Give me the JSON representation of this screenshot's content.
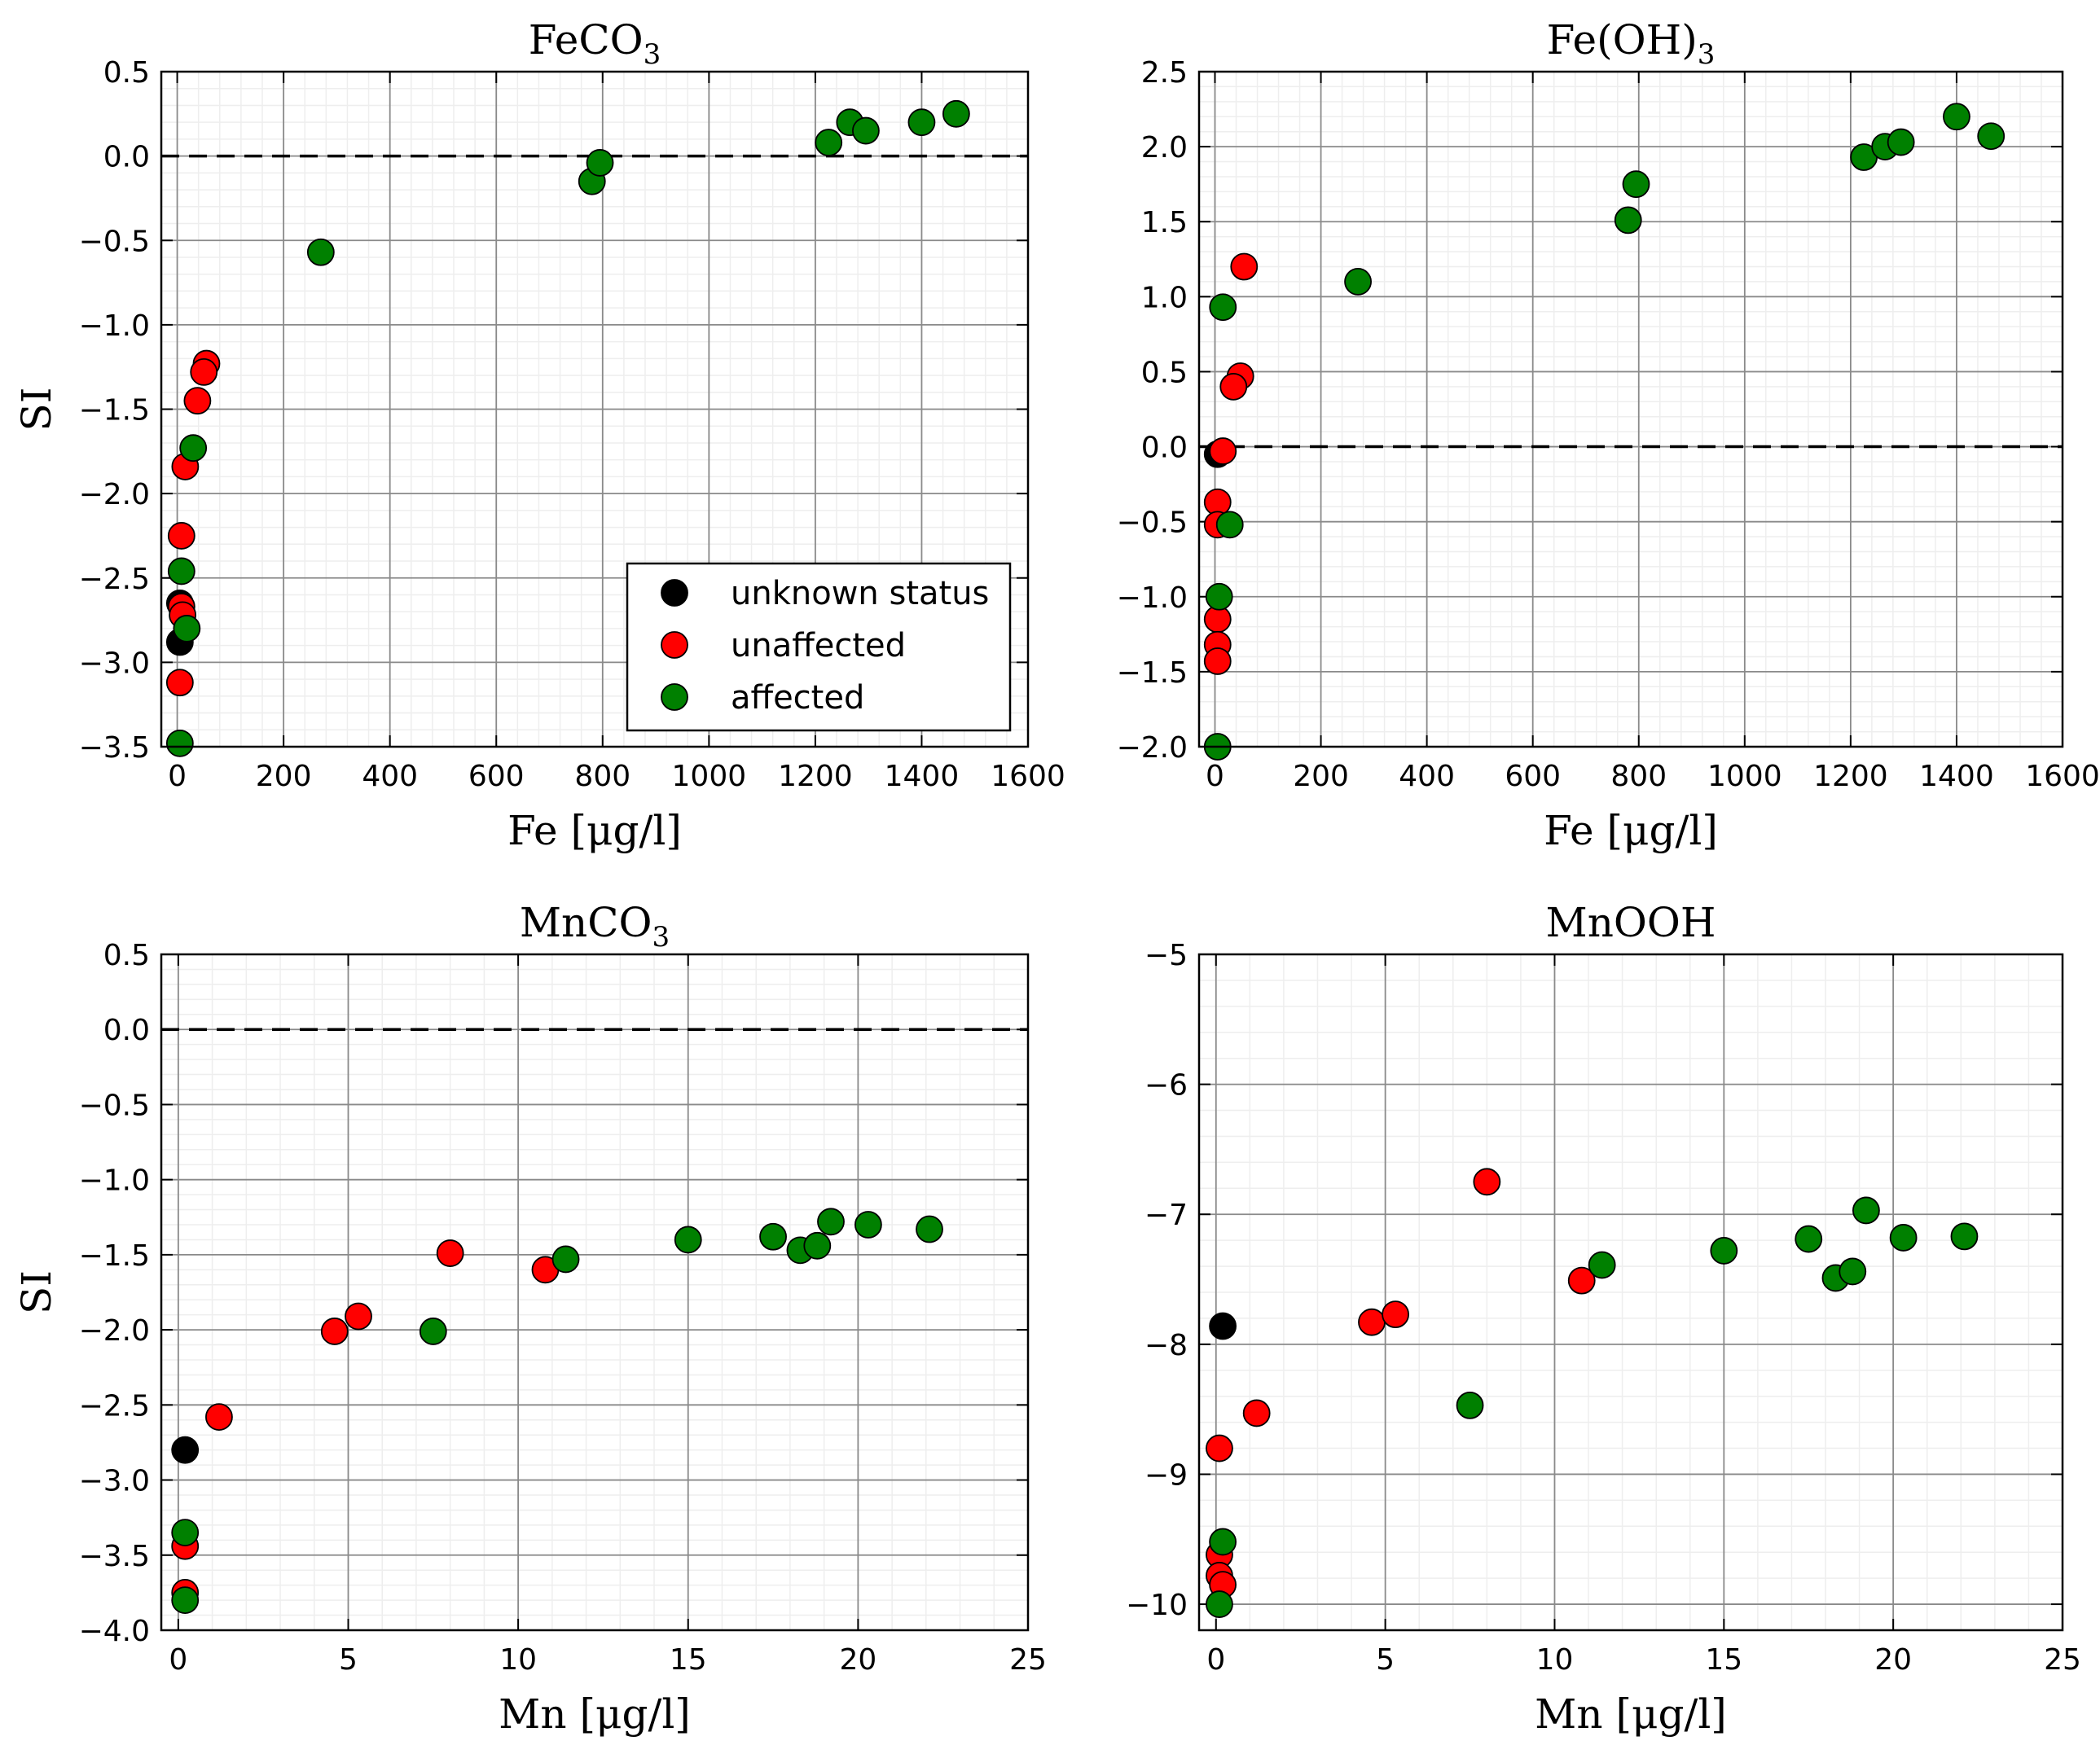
{
  "figure": {
    "ylabel": "SI"
  },
  "legend": [
    {
      "label": "unknown status",
      "color": "#000000"
    },
    {
      "label": "unaffected",
      "color": "#ff0000"
    },
    {
      "label": "affected",
      "color": "#008000"
    }
  ],
  "chart_data": [
    {
      "type": "scatter",
      "title": "FeCO",
      "title_sub": "3",
      "xlabel": "Fe [μg/l]",
      "ylabel": "SI",
      "xlim": [
        -30,
        1600
      ],
      "ylim": [
        -3.5,
        0.5
      ],
      "xticks": [
        0,
        200,
        400,
        600,
        800,
        1000,
        1200,
        1400,
        1600
      ],
      "yticks": [
        -3.5,
        -3.0,
        -2.5,
        -2.0,
        -1.5,
        -1.0,
        -0.5,
        0.0,
        0.5
      ],
      "xtick_labels": [
        "0",
        "200",
        "400",
        "600",
        "800",
        "1000",
        "1200",
        "1400",
        "1600"
      ],
      "ytick_labels": [
        "−3.5",
        "−3.0",
        "−2.5",
        "−2.0",
        "−1.5",
        "−1.0",
        "−0.5",
        "0.0",
        "0.5"
      ],
      "grid": true,
      "reference_line": 0,
      "legend_position": "lower-right",
      "series": [
        {
          "name": "unknown status",
          "color": "#000000",
          "points": [
            [
              5,
              -2.65
            ],
            [
              5,
              -2.88
            ]
          ]
        },
        {
          "name": "unaffected",
          "color": "#ff0000",
          "points": [
            [
              55,
              -1.23
            ],
            [
              50,
              -1.28
            ],
            [
              38,
              -1.45
            ],
            [
              15,
              -1.84
            ],
            [
              8,
              -2.25
            ],
            [
              8,
              -2.67
            ],
            [
              10,
              -2.72
            ],
            [
              5,
              -3.12
            ]
          ]
        },
        {
          "name": "affected",
          "color": "#008000",
          "points": [
            [
              270,
              -0.57
            ],
            [
              780,
              -0.15
            ],
            [
              795,
              -0.04
            ],
            [
              1225,
              0.08
            ],
            [
              1265,
              0.2
            ],
            [
              1295,
              0.15
            ],
            [
              1400,
              0.2
            ],
            [
              1465,
              0.25
            ],
            [
              30,
              -1.73
            ],
            [
              8,
              -2.46
            ],
            [
              18,
              -2.8
            ],
            [
              5,
              -3.48
            ]
          ]
        }
      ]
    },
    {
      "type": "scatter",
      "title": "Fe(OH)",
      "title_sub": "3",
      "xlabel": "Fe [μg/l]",
      "ylabel": "",
      "xlim": [
        -30,
        1600
      ],
      "ylim": [
        -2.0,
        2.5
      ],
      "xticks": [
        0,
        200,
        400,
        600,
        800,
        1000,
        1200,
        1400,
        1600
      ],
      "yticks": [
        -2.0,
        -1.5,
        -1.0,
        -0.5,
        0.0,
        0.5,
        1.0,
        1.5,
        2.0,
        2.5
      ],
      "xtick_labels": [
        "0",
        "200",
        "400",
        "600",
        "800",
        "1000",
        "1200",
        "1400",
        "1600"
      ],
      "ytick_labels": [
        "−2.0",
        "−1.5",
        "−1.0",
        "−0.5",
        "0.0",
        "0.5",
        "1.0",
        "1.5",
        "2.0",
        "2.5"
      ],
      "grid": true,
      "reference_line": 0,
      "series": [
        {
          "name": "unknown status",
          "color": "#000000",
          "points": [
            [
              5,
              -0.05
            ]
          ]
        },
        {
          "name": "unaffected",
          "color": "#ff0000",
          "points": [
            [
              55,
              1.2
            ],
            [
              48,
              0.47
            ],
            [
              35,
              0.4
            ],
            [
              15,
              -0.03
            ],
            [
              5,
              -0.37
            ],
            [
              5,
              -0.52
            ],
            [
              5,
              -1.15
            ],
            [
              5,
              -1.32
            ],
            [
              5,
              -1.43
            ]
          ]
        },
        {
          "name": "affected",
          "color": "#008000",
          "points": [
            [
              15,
              0.93
            ],
            [
              270,
              1.1
            ],
            [
              780,
              1.51
            ],
            [
              795,
              1.75
            ],
            [
              1225,
              1.93
            ],
            [
              1265,
              2.0
            ],
            [
              1295,
              2.03
            ],
            [
              1400,
              2.2
            ],
            [
              1465,
              2.07
            ],
            [
              28,
              -0.52
            ],
            [
              8,
              -1.0
            ],
            [
              5,
              -2.0
            ]
          ]
        }
      ]
    },
    {
      "type": "scatter",
      "title": "MnCO",
      "title_sub": "3",
      "xlabel": "Mn [μg/l]",
      "ylabel": "SI",
      "xlim": [
        -0.5,
        25
      ],
      "ylim": [
        -4.0,
        0.5
      ],
      "xticks": [
        0,
        5,
        10,
        15,
        20,
        25
      ],
      "yticks": [
        -4.0,
        -3.5,
        -3.0,
        -2.5,
        -2.0,
        -1.5,
        -1.0,
        -0.5,
        0.0,
        0.5
      ],
      "xtick_labels": [
        "0",
        "5",
        "10",
        "15",
        "20",
        "25"
      ],
      "ytick_labels": [
        "−4.0",
        "−3.5",
        "−3.0",
        "−2.5",
        "−2.0",
        "−1.5",
        "−1.0",
        "−0.5",
        "0.0",
        "0.5"
      ],
      "grid": true,
      "reference_line": 0,
      "series": [
        {
          "name": "unknown status",
          "color": "#000000",
          "points": [
            [
              0.2,
              -2.8
            ]
          ]
        },
        {
          "name": "unaffected",
          "color": "#ff0000",
          "points": [
            [
              1.2,
              -2.58
            ],
            [
              4.6,
              -2.01
            ],
            [
              5.3,
              -1.91
            ],
            [
              8.0,
              -1.49
            ],
            [
              10.8,
              -1.6
            ],
            [
              0.2,
              -3.44
            ],
            [
              0.2,
              -3.75
            ]
          ]
        },
        {
          "name": "affected",
          "color": "#008000",
          "points": [
            [
              7.5,
              -2.01
            ],
            [
              11.4,
              -1.53
            ],
            [
              15.0,
              -1.4
            ],
            [
              17.5,
              -1.38
            ],
            [
              18.3,
              -1.47
            ],
            [
              18.8,
              -1.44
            ],
            [
              19.2,
              -1.28
            ],
            [
              20.3,
              -1.3
            ],
            [
              22.1,
              -1.33
            ],
            [
              0.2,
              -3.35
            ],
            [
              0.2,
              -3.8
            ]
          ]
        }
      ]
    },
    {
      "type": "scatter",
      "title": "MnOOH",
      "title_sub": "",
      "xlabel": "Mn [μg/l]",
      "ylabel": "",
      "xlim": [
        -0.5,
        25
      ],
      "ylim": [
        -10.2,
        -5
      ],
      "xticks": [
        0,
        5,
        10,
        15,
        20,
        25
      ],
      "yticks": [
        -10,
        -9,
        -8,
        -7,
        -6,
        -5
      ],
      "xtick_labels": [
        "0",
        "5",
        "10",
        "15",
        "20",
        "25"
      ],
      "ytick_labels": [
        "−10",
        "−9",
        "−8",
        "−7",
        "−6",
        "−5"
      ],
      "grid": true,
      "reference_line": null,
      "series": [
        {
          "name": "unknown status",
          "color": "#000000",
          "points": [
            [
              0.2,
              -7.86
            ]
          ]
        },
        {
          "name": "unaffected",
          "color": "#ff0000",
          "points": [
            [
              8.0,
              -6.75
            ],
            [
              10.8,
              -7.51
            ],
            [
              4.6,
              -7.83
            ],
            [
              5.3,
              -7.77
            ],
            [
              1.2,
              -8.53
            ],
            [
              0.1,
              -8.8
            ],
            [
              0.1,
              -9.62
            ],
            [
              0.1,
              -9.78
            ],
            [
              0.2,
              -9.85
            ]
          ]
        },
        {
          "name": "affected",
          "color": "#008000",
          "points": [
            [
              11.4,
              -7.39
            ],
            [
              15.0,
              -7.28
            ],
            [
              17.5,
              -7.19
            ],
            [
              18.3,
              -7.49
            ],
            [
              18.8,
              -7.44
            ],
            [
              19.2,
              -6.97
            ],
            [
              20.3,
              -7.18
            ],
            [
              22.1,
              -7.17
            ],
            [
              7.5,
              -8.47
            ],
            [
              0.2,
              -9.52
            ],
            [
              0.1,
              -10.0
            ]
          ]
        }
      ]
    }
  ]
}
